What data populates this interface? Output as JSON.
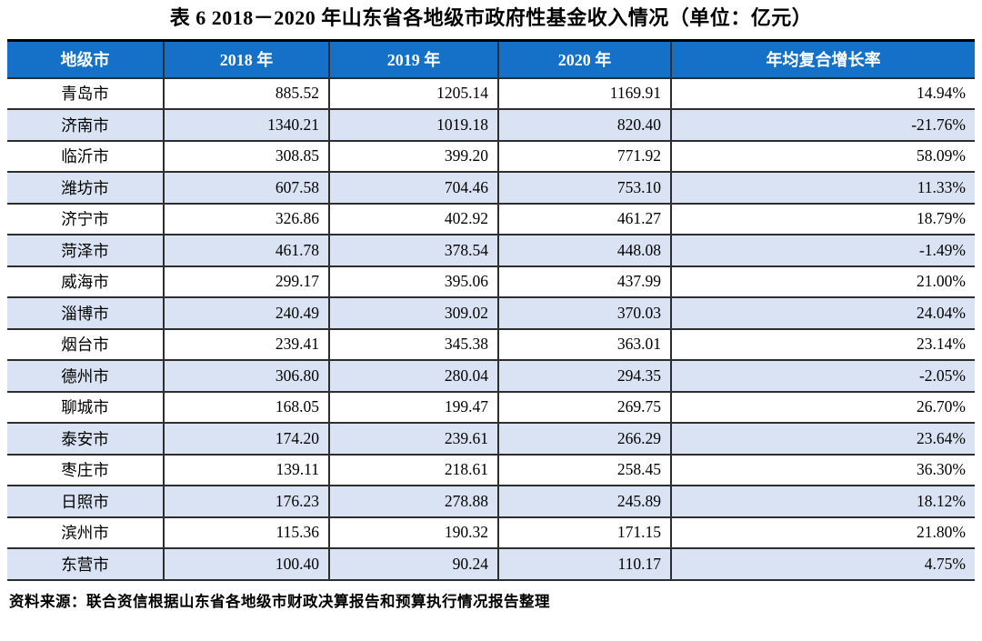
{
  "title": "表 6  2018－2020 年山东省各地级市政府性基金收入情况（单位：亿元）",
  "table": {
    "columns": [
      "地级市",
      "2018 年",
      "2019 年",
      "2020 年",
      "年均复合增长率"
    ],
    "rows": [
      [
        "青岛市",
        "885.52",
        "1205.14",
        "1169.91",
        "14.94%"
      ],
      [
        "济南市",
        "1340.21",
        "1019.18",
        "820.40",
        "-21.76%"
      ],
      [
        "临沂市",
        "308.85",
        "399.20",
        "771.92",
        "58.09%"
      ],
      [
        "潍坊市",
        "607.58",
        "704.46",
        "753.10",
        "11.33%"
      ],
      [
        "济宁市",
        "326.86",
        "402.92",
        "461.27",
        "18.79%"
      ],
      [
        "菏泽市",
        "461.78",
        "378.54",
        "448.08",
        "-1.49%"
      ],
      [
        "威海市",
        "299.17",
        "395.06",
        "437.99",
        "21.00%"
      ],
      [
        "淄博市",
        "240.49",
        "309.02",
        "370.03",
        "24.04%"
      ],
      [
        "烟台市",
        "239.41",
        "345.38",
        "363.01",
        "23.14%"
      ],
      [
        "德州市",
        "306.80",
        "280.04",
        "294.35",
        "-2.05%"
      ],
      [
        "聊城市",
        "168.05",
        "199.47",
        "269.75",
        "26.70%"
      ],
      [
        "泰安市",
        "174.20",
        "239.61",
        "266.29",
        "23.64%"
      ],
      [
        "枣庄市",
        "139.11",
        "218.61",
        "258.45",
        "36.30%"
      ],
      [
        "日照市",
        "176.23",
        "278.88",
        "245.89",
        "18.12%"
      ],
      [
        "滨州市",
        "115.36",
        "190.32",
        "171.15",
        "21.80%"
      ],
      [
        "东营市",
        "100.40",
        "90.24",
        "110.17",
        "4.75%"
      ]
    ]
  },
  "source_note": "资料来源：联合资信根据山东省各地级市财政决算报告和预算执行情况报告整理",
  "colors": {
    "header_bg": "#1571C8",
    "header_text": "#FFFFFF",
    "row_alt_bg": "#DAE3F3",
    "row_bg": "#FFFFFF",
    "border": "#2E2E2E",
    "border_heavy": "#000000",
    "text": "#000000"
  }
}
